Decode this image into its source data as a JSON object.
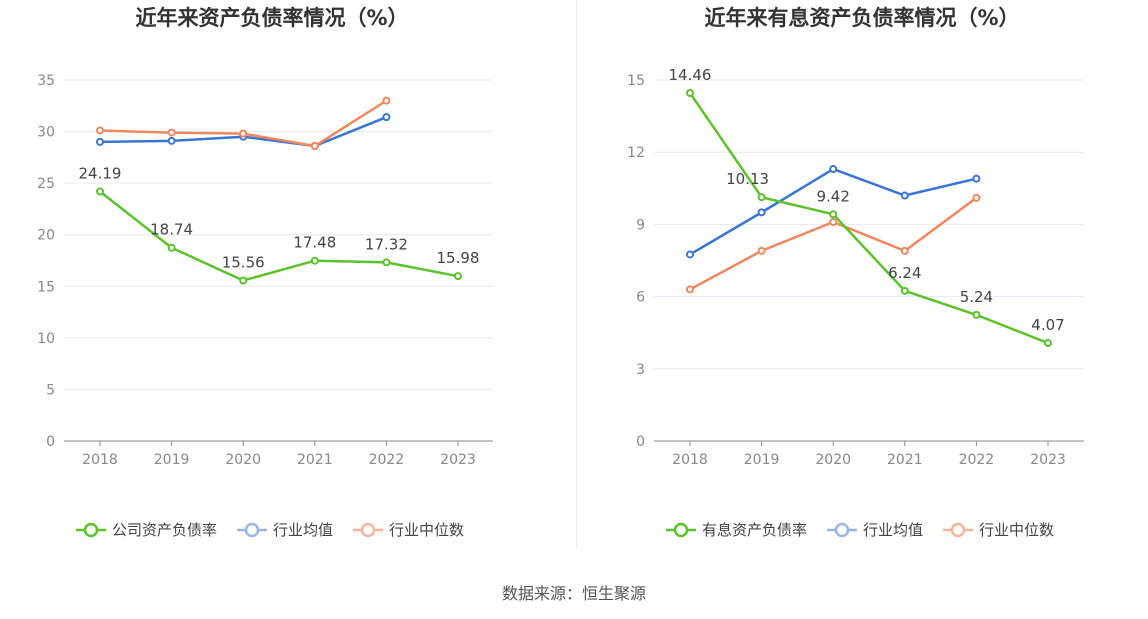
{
  "colors": {
    "company": "#5bc22c",
    "industry_avg": "#3a75d6",
    "industry_median": "#f0875e",
    "grid": "#e6e9f2",
    "axis": "#888888",
    "tick_text": "#888888",
    "title": "#333333",
    "legend_text": "#444444",
    "legend_avg_faded": "#98b6e8",
    "legend_median_faded": "#f6b59a"
  },
  "chart_data": [
    {
      "type": "line",
      "title": "近年来资产负债率情况（%）",
      "categories": [
        "2018",
        "2019",
        "2020",
        "2021",
        "2022",
        "2023"
      ],
      "ylim": [
        0,
        35
      ],
      "yticks": [
        0,
        5,
        10,
        15,
        20,
        25,
        30,
        35
      ],
      "grid": true,
      "legend_position": "bottom",
      "series": [
        {
          "name": "公司资产负债率",
          "values": [
            24.19,
            18.74,
            15.56,
            17.48,
            17.32,
            15.98
          ],
          "labels": [
            "24.19",
            "18.74",
            "15.56",
            "17.48",
            "17.32",
            "15.98"
          ]
        },
        {
          "name": "行业均值",
          "values": [
            29.0,
            29.1,
            29.5,
            28.6,
            31.4,
            null
          ]
        },
        {
          "name": "行业中位数",
          "values": [
            30.1,
            29.9,
            29.8,
            28.6,
            33.0,
            null
          ]
        }
      ]
    },
    {
      "type": "line",
      "title": "近年来有息资产负债率情况（%）",
      "categories": [
        "2018",
        "2019",
        "2020",
        "2021",
        "2022",
        "2023"
      ],
      "ylim": [
        0,
        15
      ],
      "yticks": [
        0,
        3,
        6,
        9,
        12,
        15
      ],
      "grid": true,
      "legend_position": "bottom",
      "series": [
        {
          "name": "有息资产负债率",
          "values": [
            14.46,
            10.13,
            9.42,
            6.24,
            5.24,
            4.07
          ],
          "labels": [
            "14.46",
            "10.13",
            "9.42",
            "6.24",
            "5.24",
            "4.07"
          ]
        },
        {
          "name": "行业均值",
          "values": [
            7.75,
            9.5,
            11.3,
            10.2,
            10.9,
            null
          ]
        },
        {
          "name": "行业中位数",
          "values": [
            6.3,
            7.9,
            9.1,
            7.9,
            10.1,
            null
          ]
        }
      ]
    }
  ],
  "footer": {
    "source": "数据来源：恒生聚源"
  }
}
